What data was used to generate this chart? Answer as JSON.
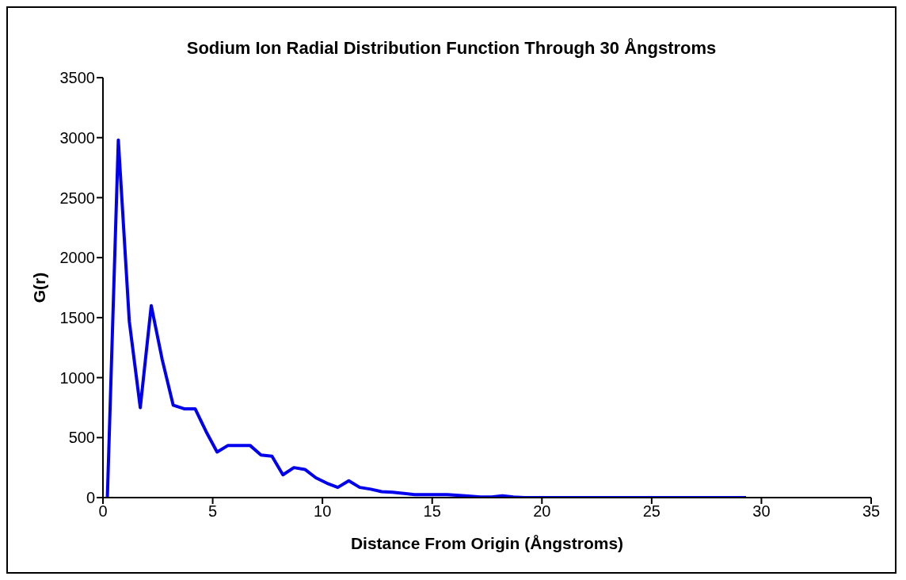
{
  "chart_data": {
    "type": "line",
    "title": "Sodium Ion Radial Distribution Function Through 30 Ångstroms",
    "xlabel": "Distance From Origin (Ångstroms)",
    "ylabel": "G(r)",
    "x": [
      0.2,
      0.7,
      1.2,
      1.7,
      2.2,
      2.7,
      3.2,
      3.7,
      4.2,
      4.7,
      5.2,
      5.7,
      6.2,
      6.7,
      7.2,
      7.7,
      8.2,
      8.7,
      9.2,
      9.7,
      10.2,
      10.7,
      11.2,
      11.7,
      12.2,
      12.7,
      13.2,
      14.2,
      15.7,
      16.5,
      17.2,
      17.7,
      18.2,
      18.7,
      19.2,
      29.3
    ],
    "series": [
      {
        "color": "#0000ee",
        "values": [
          0,
          2980,
          1470,
          750,
          1600,
          1150,
          770,
          740,
          740,
          550,
          380,
          435,
          435,
          435,
          355,
          345,
          190,
          250,
          235,
          165,
          120,
          85,
          140,
          85,
          70,
          50,
          45,
          25,
          25,
          15,
          5,
          5,
          15,
          5,
          0,
          0
        ]
      }
    ],
    "xlim": [
      0,
      35
    ],
    "xticks": [
      0,
      5,
      10,
      15,
      20,
      25,
      30,
      35
    ],
    "ylim": [
      0,
      3500
    ],
    "yticks": [
      0,
      500,
      1000,
      1500,
      2000,
      2500,
      3000,
      3500
    ],
    "grid": false,
    "legend": false,
    "marker": "none",
    "line_style": "solid"
  }
}
